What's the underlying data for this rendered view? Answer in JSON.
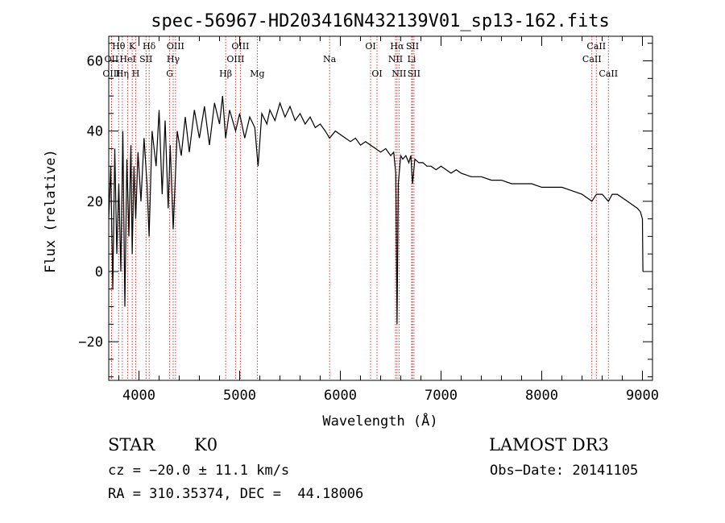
{
  "chart_data": {
    "type": "line",
    "title": "spec-56967-HD203416N432139V01_sp13-162.fits",
    "xlabel": "Wavelength (Å)",
    "ylabel": "Flux (relative)",
    "xlim": [
      3700,
      9100
    ],
    "ylim": [
      -31,
      67
    ],
    "x_ticks": [
      4000,
      5000,
      6000,
      7000,
      8000,
      9000
    ],
    "y_ticks": [
      -20,
      0,
      20,
      40,
      60
    ],
    "series": [
      {
        "name": "flux",
        "x": [
          3700,
          3720,
          3740,
          3760,
          3780,
          3800,
          3820,
          3840,
          3860,
          3880,
          3900,
          3920,
          3933,
          3950,
          3968,
          3990,
          4020,
          4050,
          4080,
          4101,
          4130,
          4170,
          4200,
          4230,
          4260,
          4290,
          4310,
          4340,
          4380,
          4420,
          4460,
          4500,
          4550,
          4600,
          4650,
          4700,
          4750,
          4800,
          4830,
          4861,
          4900,
          4960,
          5000,
          5050,
          5100,
          5150,
          5183,
          5220,
          5270,
          5300,
          5350,
          5400,
          5450,
          5500,
          5550,
          5600,
          5650,
          5700,
          5750,
          5800,
          5850,
          5893,
          5950,
          6000,
          6050,
          6100,
          6150,
          6200,
          6250,
          6300,
          6350,
          6400,
          6450,
          6500,
          6530,
          6550,
          6563,
          6575,
          6600,
          6620,
          6650,
          6680,
          6700,
          6717,
          6740,
          6780,
          6820,
          6860,
          6900,
          6950,
          7000,
          7050,
          7100,
          7150,
          7200,
          7300,
          7400,
          7500,
          7600,
          7700,
          7800,
          7900,
          8000,
          8100,
          8200,
          8300,
          8400,
          8498,
          8542,
          8600,
          8662,
          8700,
          8750,
          8800,
          8850,
          8900,
          8950,
          8980,
          9000,
          9005
        ],
        "y": [
          15,
          30,
          -5,
          35,
          5,
          25,
          0,
          40,
          -10,
          32,
          10,
          36,
          5,
          30,
          15,
          34,
          20,
          38,
          25,
          10,
          40,
          30,
          46,
          22,
          43,
          18,
          36,
          12,
          40,
          33,
          44,
          34,
          46,
          38,
          47,
          36,
          48,
          42,
          50,
          38,
          46,
          40,
          45,
          38,
          44,
          41,
          30,
          45,
          42,
          46,
          43,
          48,
          44,
          47,
          43,
          45,
          42,
          44,
          41,
          42,
          40,
          38,
          40,
          39,
          38,
          37,
          38,
          36,
          37,
          36,
          35,
          34,
          35,
          33,
          34,
          28,
          -15,
          25,
          33,
          32,
          33,
          31,
          33,
          25,
          32,
          31,
          31,
          30,
          30,
          29,
          30,
          29,
          28,
          29,
          28,
          27,
          27,
          26,
          26,
          25,
          25,
          25,
          24,
          24,
          24,
          23,
          22,
          20,
          22,
          22,
          20,
          22,
          22,
          21,
          20,
          19,
          18,
          17,
          15,
          0
        ]
      }
    ],
    "lines": [
      {
        "name": "Hθ",
        "x": 3798,
        "row": 0
      },
      {
        "name": "OII",
        "x": 3727,
        "row": 1
      },
      {
        "name": "OIII",
        "x": 3727,
        "row": 2
      },
      {
        "name": "Hη",
        "x": 3835,
        "row": 2
      },
      {
        "name": "HeI",
        "x": 3889,
        "row": 1
      },
      {
        "name": "K",
        "x": 3933,
        "row": 0
      },
      {
        "name": "H",
        "x": 3968,
        "row": 2
      },
      {
        "name": "Hδ",
        "x": 4101,
        "row": 0
      },
      {
        "name": "SII",
        "x": 4070,
        "row": 1
      },
      {
        "name": "G",
        "x": 4305,
        "row": 2
      },
      {
        "name": "Hγ",
        "x": 4340,
        "row": 1
      },
      {
        "name": "OIII",
        "x": 4363,
        "row": 0
      },
      {
        "name": "Hβ",
        "x": 4861,
        "row": 2
      },
      {
        "name": "OIII",
        "x": 4959,
        "row": 1
      },
      {
        "name": "OIII",
        "x": 5007,
        "row": 0
      },
      {
        "name": "Mg",
        "x": 5175,
        "row": 2
      },
      {
        "name": "Na",
        "x": 5893,
        "row": 1
      },
      {
        "name": "OI",
        "x": 6300,
        "row": 0
      },
      {
        "name": "OI",
        "x": 6364,
        "row": 2
      },
      {
        "name": "NII",
        "x": 6548,
        "row": 1
      },
      {
        "name": "Hα",
        "x": 6563,
        "row": 0
      },
      {
        "name": "NII",
        "x": 6583,
        "row": 2
      },
      {
        "name": "Li",
        "x": 6708,
        "row": 1
      },
      {
        "name": "SII",
        "x": 6716,
        "row": 0
      },
      {
        "name": "SII",
        "x": 6731,
        "row": 2
      },
      {
        "name": "CaII",
        "x": 8498,
        "row": 1
      },
      {
        "name": "CaII",
        "x": 8542,
        "row": 0
      },
      {
        "name": "CaII",
        "x": 8662,
        "row": 2
      }
    ]
  },
  "info": {
    "object_class": "STAR",
    "subclass": "K0",
    "survey": "LAMOST DR3",
    "redshift": "cz = −20.0 ± 11.1 km/s",
    "obs_date": "Obs−Date: 20141105",
    "coords": "RA = 310.35374, DEC =  44.18006"
  }
}
